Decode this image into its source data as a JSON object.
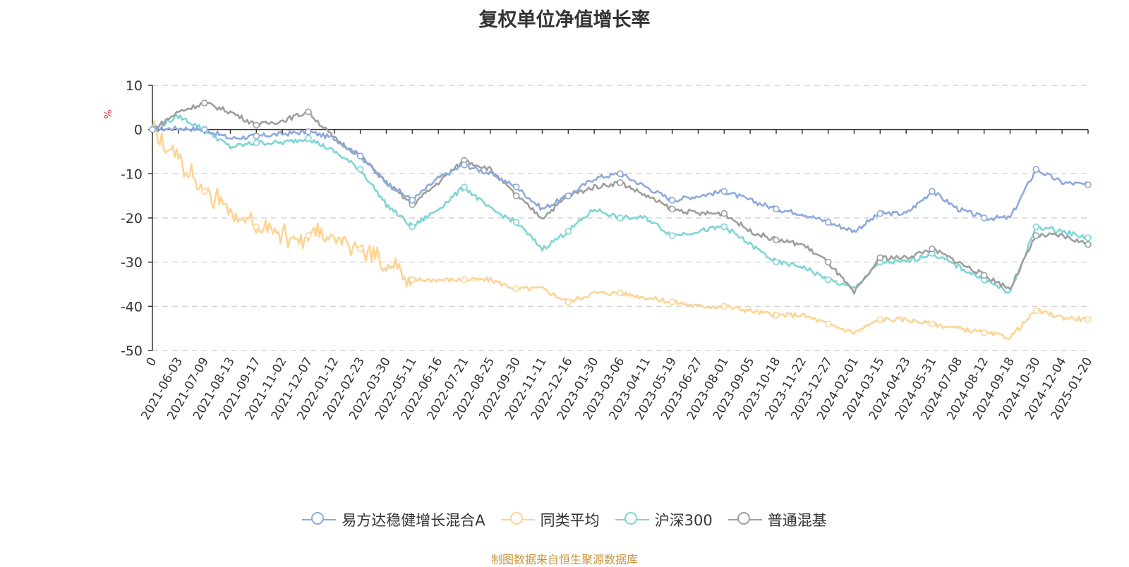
{
  "chart_data": {
    "type": "line",
    "title": "复权单位净值增长率",
    "ylabel": "%",
    "ylim": [
      -50,
      10
    ],
    "yticks": [
      10,
      0,
      -10,
      -20,
      -30,
      -40,
      -50
    ],
    "x_labels": [
      "0",
      "2021-06-03",
      "2021-07-09",
      "2021-08-13",
      "2021-09-17",
      "2021-11-02",
      "2021-12-07",
      "2022-01-12",
      "2022-02-23",
      "2022-03-30",
      "2022-05-11",
      "2022-06-16",
      "2022-07-21",
      "2022-08-25",
      "2022-09-30",
      "2022-11-11",
      "2022-12-16",
      "2023-01-30",
      "2023-03-06",
      "2023-04-11",
      "2023-05-19",
      "2023-06-27",
      "2023-08-01",
      "2023-09-05",
      "2023-10-18",
      "2023-11-22",
      "2023-12-27",
      "2024-02-01",
      "2024-03-15",
      "2024-04-23",
      "2024-05-31",
      "2024-07-08",
      "2024-08-12",
      "2024-09-18",
      "2024-10-30",
      "2024-12-04",
      "2025-01-20"
    ],
    "series": [
      {
        "name": "易方达稳健增长混合A",
        "color": "#8eaadb",
        "values": [
          0,
          0.3,
          0,
          -2,
          -1.5,
          -1,
          -0.5,
          -2,
          -6,
          -12,
          -16,
          -11,
          -8,
          -10,
          -13,
          -18,
          -15,
          -11,
          -10,
          -13,
          -16,
          -15,
          -14,
          -16,
          -18,
          -19,
          -21,
          -23,
          -19,
          -19,
          -14,
          -18,
          -20,
          -20,
          -9,
          -12,
          -12.5
        ]
      },
      {
        "name": "同类平均",
        "color": "#fdd495",
        "values": [
          0,
          -7,
          -14,
          -19,
          -22,
          -24,
          -24,
          -25,
          -27,
          -31,
          -34,
          -34,
          -34,
          -34,
          -36,
          -36,
          -39,
          -37,
          -37,
          -38,
          -39,
          -40,
          -40,
          -41,
          -42,
          -42,
          -44,
          -46,
          -43,
          -43,
          -44,
          -45,
          -46,
          -47,
          -41,
          -42.5,
          -43
        ]
      },
      {
        "name": "沪深300",
        "color": "#7fd5d5",
        "values": [
          0,
          3,
          0,
          -4,
          -3,
          -3,
          -2,
          -5,
          -9,
          -17,
          -22,
          -18,
          -13,
          -18,
          -21,
          -27,
          -23,
          -18,
          -20,
          -20,
          -24,
          -23,
          -22,
          -26,
          -30,
          -31,
          -34,
          -36,
          -30,
          -30,
          -28,
          -31,
          -34,
          -37,
          -22,
          -23,
          -24.5
        ]
      },
      {
        "name": "普通混基",
        "color": "#9e9e9e",
        "values": [
          0,
          4,
          6,
          4,
          1,
          2,
          4,
          -2,
          -6,
          -12,
          -17,
          -12,
          -7,
          -9,
          -15,
          -20,
          -15,
          -13,
          -12,
          -15,
          -18,
          -19,
          -19,
          -23,
          -25,
          -26,
          -30,
          -37,
          -29,
          -29,
          -27,
          -30,
          -33,
          -36,
          -24,
          -24,
          -26
        ]
      }
    ]
  },
  "footer": {
    "source": "制图数据来自恒生聚源数据库"
  }
}
